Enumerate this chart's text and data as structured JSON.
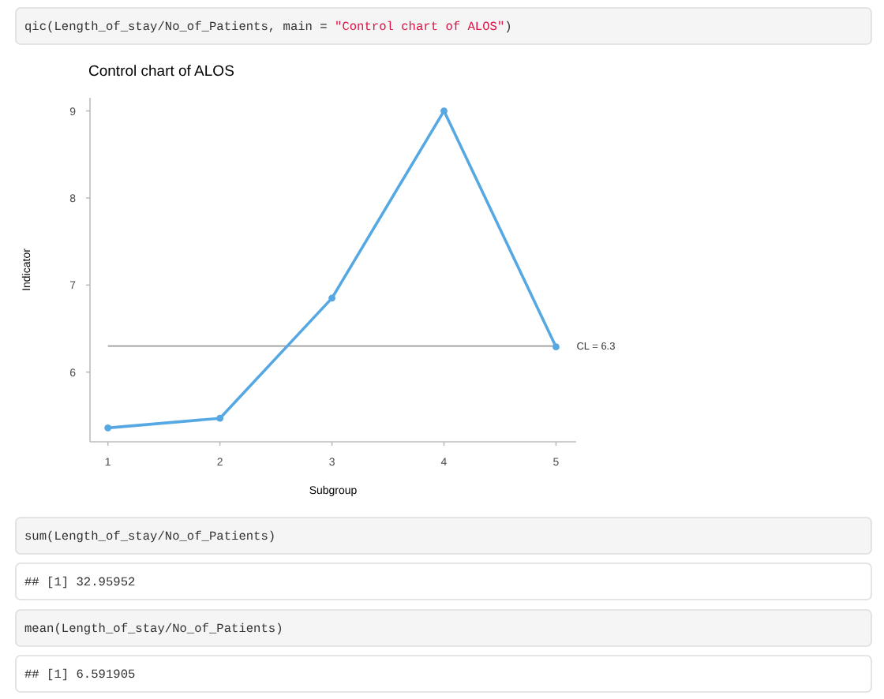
{
  "chart_data": {
    "type": "line",
    "title": "Control chart of ALOS",
    "xlabel": "Subgroup",
    "ylabel": "Indicator",
    "x": [
      1,
      2,
      3,
      4,
      5
    ],
    "series": [
      {
        "color": "#56a8e2",
        "values": [
          5.36,
          5.47,
          6.85,
          9.0,
          6.29
        ]
      }
    ],
    "xlim": [
      0.84,
      5.18
    ],
    "ylim": [
      5.2,
      9.15
    ],
    "xticks": [
      1,
      2,
      3,
      4,
      5
    ],
    "yticks": [
      6,
      7,
      8,
      9
    ],
    "marker": "circle",
    "line_style": "solid",
    "ref_lines": [
      {
        "axis": "y",
        "value": 6.3,
        "label": "CL = 6.3",
        "color": "#999999"
      }
    ],
    "annotations": [
      "qic(Length_of_stay/No_of_Patients, main = \"Control chart of ALOS\")",
      "sum(Length_of_stay/No_of_Patients)",
      "## [1] 32.95952",
      "mean(Length_of_stay/No_of_Patients)",
      "## [1] 6.591905"
    ]
  }
}
